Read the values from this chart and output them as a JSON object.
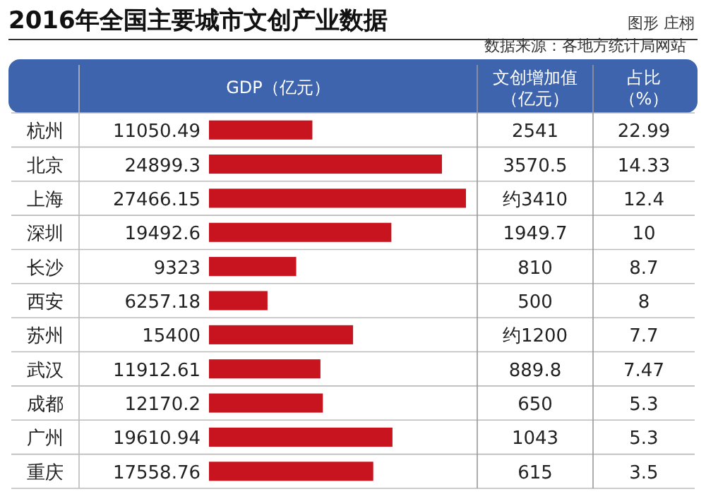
{
  "chart_data": [
    {
      "type": "bar",
      "orientation": "horizontal",
      "title": "2016年全国主要城市文创产业数据",
      "xlabel": "GDP（亿元）",
      "categories": [
        "杭州",
        "北京",
        "上海",
        "深圳",
        "长沙",
        "西安",
        "苏州",
        "武汉",
        "成都",
        "广州",
        "重庆"
      ],
      "values": [
        11050.49,
        24899.3,
        27466.15,
        19492.6,
        9323,
        6257.18,
        15400,
        11912.61,
        12170.2,
        19610.94,
        17558.76
      ],
      "color": "#c8141e",
      "data_labels": true,
      "annotations": [
        "图形 庄栩",
        "数据来源：各地方统计局网站"
      ]
    },
    {
      "type": "other",
      "title": "文创增加值（亿元）",
      "values": [
        2541,
        3570.5,
        3410,
        1949.7,
        810,
        500,
        1200,
        889.8,
        650,
        1043,
        615
      ],
      "value_labels": [
        "2541",
        "3570.5",
        "约3410",
        "1949.7",
        "810",
        "500",
        "约1200",
        "889.8",
        "650",
        "1043",
        "615"
      ]
    },
    {
      "type": "other",
      "title": "占比（%）",
      "values": [
        22.99,
        14.33,
        12.4,
        10,
        8.7,
        8,
        7.7,
        7.47,
        5.3,
        5.3,
        3.5
      ],
      "data_labels": true
    }
  ]
}
